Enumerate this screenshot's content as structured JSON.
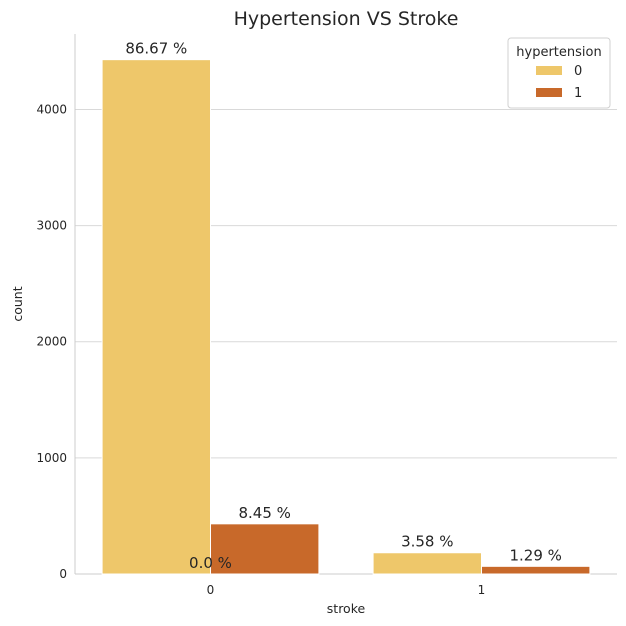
{
  "chart_data": {
    "type": "bar",
    "title": "Hypertension VS Stroke",
    "xlabel": "stroke",
    "ylabel": "count",
    "categories": [
      "0",
      "1"
    ],
    "ylim": [
      0,
      4650
    ],
    "yticks": [
      0,
      1000,
      2000,
      3000,
      4000
    ],
    "ytick_labels": [
      "0",
      "1000",
      "2000",
      "3000",
      "4000"
    ],
    "grid": true,
    "legend": {
      "title": "hypertension",
      "placement": "top-right"
    },
    "series": [
      {
        "name": "0",
        "color": "#EEC76A",
        "values": [
          4429,
          183
        ],
        "labels": [
          "86.67 %",
          "3.58 %"
        ]
      },
      {
        "name": "1",
        "color": "#C8692A",
        "values": [
          432,
          66
        ],
        "labels": [
          "8.45 %",
          "1.29 %"
        ]
      }
    ],
    "extra_annotations": [
      {
        "text": "0.0 %",
        "category": "0",
        "value": 0
      }
    ]
  }
}
